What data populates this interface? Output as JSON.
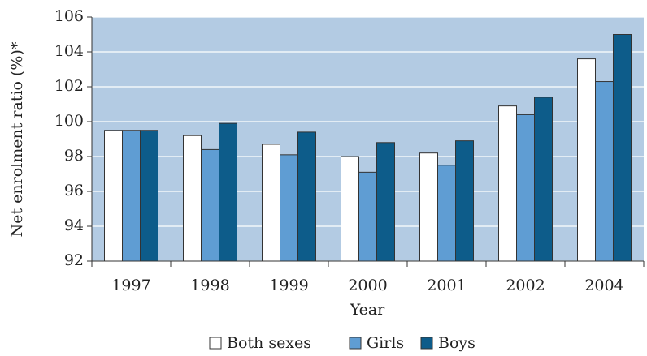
{
  "chart_data": {
    "type": "bar",
    "x_label": "Year",
    "y_label": "Net enrolment ratio (%)*",
    "categories": [
      "1997",
      "1998",
      "1999",
      "2000",
      "2001",
      "2002",
      "2004"
    ],
    "series": [
      {
        "name": "Both sexes",
        "color": "#ffffff",
        "values": [
          99.5,
          99.2,
          98.7,
          98.0,
          98.2,
          100.9,
          103.6
        ]
      },
      {
        "name": "Girls",
        "color": "#5f9dd3",
        "values": [
          99.5,
          98.4,
          98.1,
          97.1,
          97.5,
          100.4,
          102.3
        ]
      },
      {
        "name": "Boys",
        "color": "#0d5c8a",
        "values": [
          99.5,
          99.9,
          99.4,
          98.8,
          98.9,
          101.4,
          105.0
        ]
      }
    ],
    "ylim": [
      92,
      106
    ],
    "yticks": [
      92,
      94,
      96,
      98,
      100,
      102,
      104,
      106
    ],
    "grid": true,
    "plot_background": "#b3cbe3",
    "legend": "bottom"
  }
}
